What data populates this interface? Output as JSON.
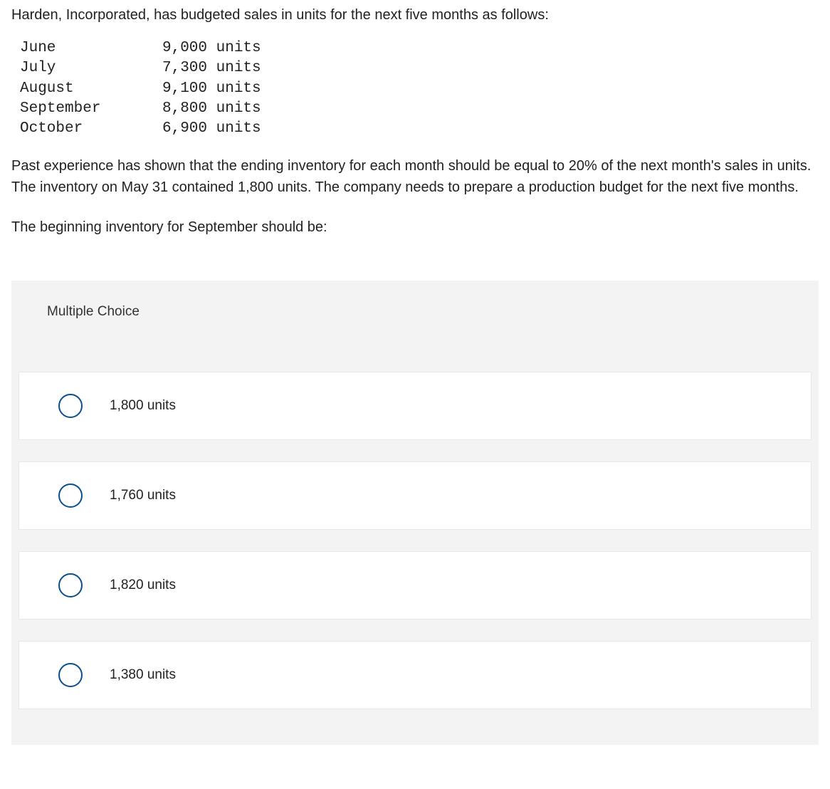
{
  "intro": "Harden, Incorporated, has budgeted sales in units for the next five months as follows:",
  "budget": {
    "rows": [
      {
        "month": "June",
        "value": "9,000 units"
      },
      {
        "month": "July",
        "value": "7,300 units"
      },
      {
        "month": "August",
        "value": "9,100 units"
      },
      {
        "month": "September",
        "value": "8,800 units"
      },
      {
        "month": "October",
        "value": "6,900 units"
      }
    ]
  },
  "para2": "Past experience has shown that the ending inventory for each month should be equal to 20% of the next month's sales in units. The inventory on May 31 contained 1,800 units. The company needs to prepare a production budget for the next five months.",
  "question": "The beginning inventory for September should be:",
  "mc": {
    "header": "Multiple Choice",
    "options": [
      {
        "label": "1,800 units"
      },
      {
        "label": "1,760 units"
      },
      {
        "label": "1,820 units"
      },
      {
        "label": "1,380 units"
      }
    ]
  },
  "colors": {
    "radio_border": "#0a4f8f",
    "panel_bg": "#f3f3f3",
    "option_bg": "#ffffff",
    "text": "#222222"
  }
}
